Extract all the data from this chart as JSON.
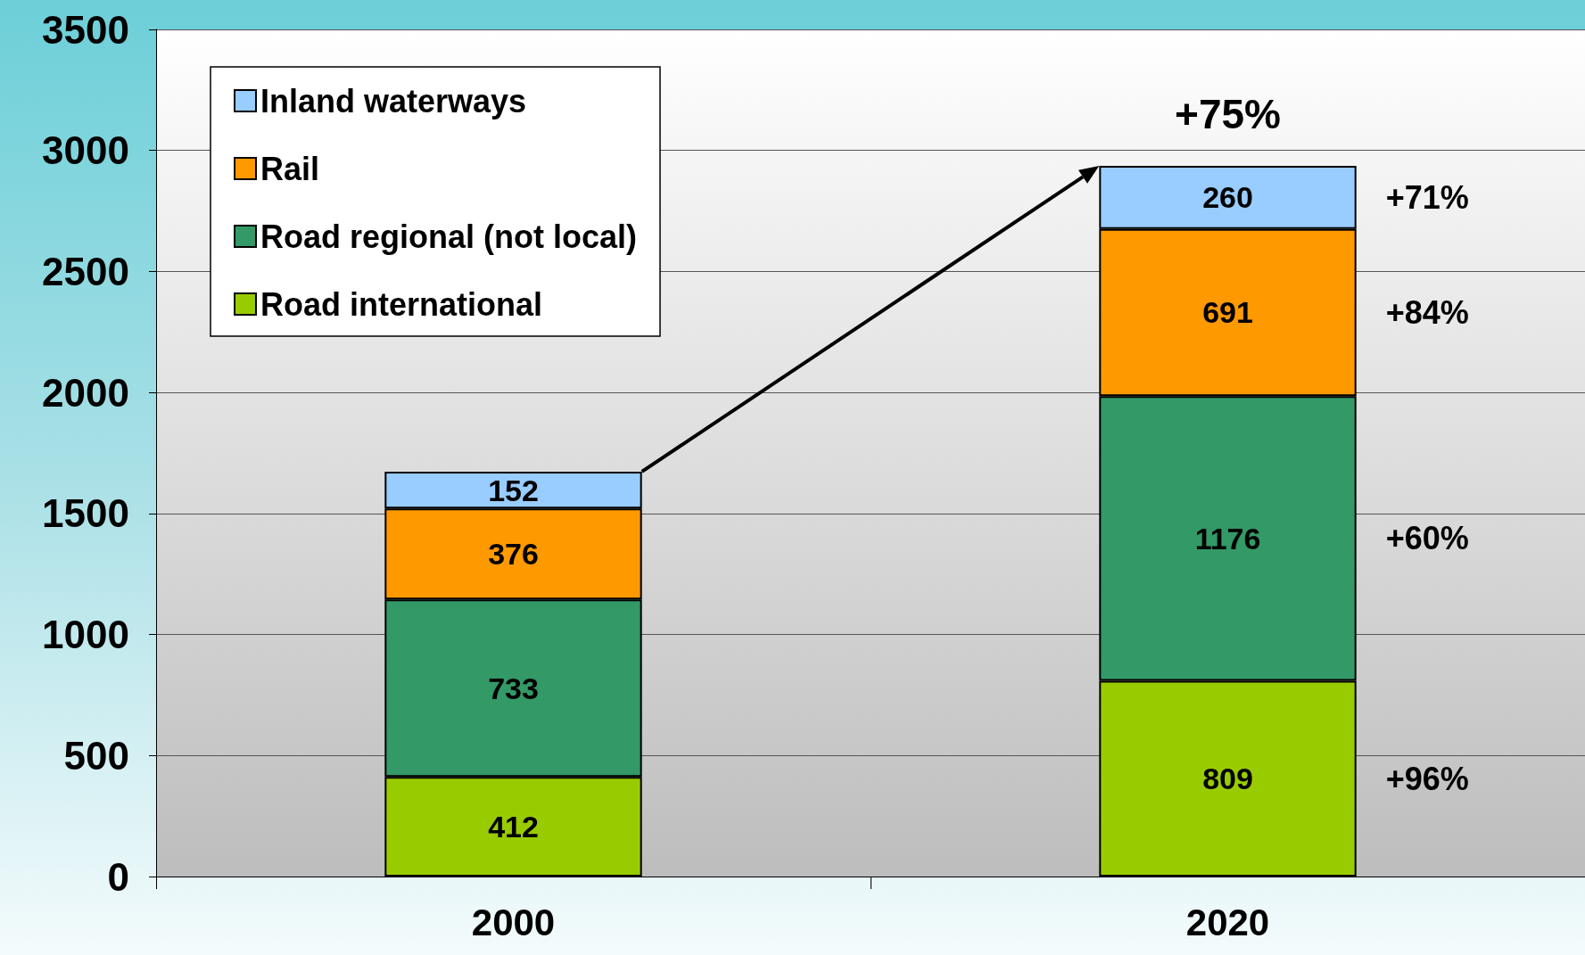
{
  "chart_data": {
    "type": "bar",
    "stacked": true,
    "categories": [
      "2000",
      "2020"
    ],
    "series": [
      {
        "name": "Road international",
        "color": "#99cc00",
        "values": [
          412,
          809
        ]
      },
      {
        "name": "Road regional (not local)",
        "color": "#339966",
        "values": [
          733,
          1176
        ]
      },
      {
        "name": "Rail",
        "color": "#ff9900",
        "values": [
          376,
          691
        ]
      },
      {
        "name": "Inland waterways",
        "color": "#99ccff",
        "values": [
          152,
          260
        ]
      }
    ],
    "ylim": [
      0,
      3500
    ],
    "yticks": [
      0,
      500,
      1000,
      1500,
      2000,
      2500,
      3000,
      3500
    ],
    "grid": "y",
    "legend": "top left",
    "data_labels": true,
    "annotations": [
      "+75%",
      "+71%",
      "+84%",
      "+60%",
      "+96%"
    ]
  }
}
